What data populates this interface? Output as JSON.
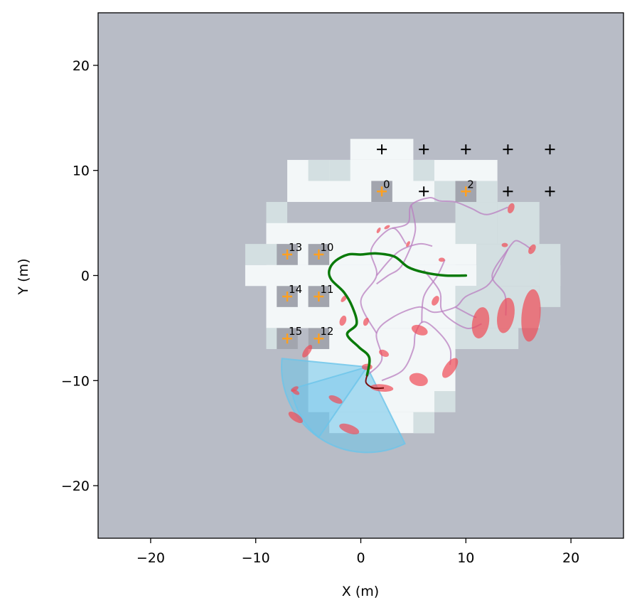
{
  "chart_data": {
    "type": "scatter",
    "xlabel": "X (m)",
    "ylabel": "Y (m)",
    "xlim": [
      -25,
      25
    ],
    "ylim": [
      -25,
      25
    ],
    "xticks": [
      -20,
      -10,
      0,
      10,
      20
    ],
    "yticks": [
      -20,
      -10,
      0,
      10,
      20
    ],
    "xtick_labels": [
      "−20",
      "−10",
      "0",
      "10",
      "20"
    ],
    "ytick_labels": [
      "−20",
      "−10",
      "0",
      "10",
      "20"
    ],
    "grid": false,
    "colors": {
      "background_unknown": "#b8bcc6",
      "free_space": "#f3f7f8",
      "uncertain_space": "#d3dfe1",
      "occupied_cell": "#a2a5ae",
      "trajectory": "#0a7a0a",
      "candidate_paths": "#b97fc0",
      "covariance_ellipse": "#ef4a55",
      "sensor_fov": "#6cc4ea",
      "landmark_estimate": "#ffa020",
      "landmark_grid": "#000000"
    },
    "grid_landmarks": [
      {
        "x": 2,
        "y": 12
      },
      {
        "x": 6,
        "y": 12
      },
      {
        "x": 10,
        "y": 12
      },
      {
        "x": 14,
        "y": 12
      },
      {
        "x": 18,
        "y": 12
      },
      {
        "x": 6,
        "y": 8
      },
      {
        "x": 14,
        "y": 8
      },
      {
        "x": 18,
        "y": 8
      }
    ],
    "observed_landmarks": [
      {
        "id": "0",
        "x": 2,
        "y": 8
      },
      {
        "id": "2",
        "x": 10,
        "y": 8
      },
      {
        "id": "13",
        "x": -7,
        "y": 2
      },
      {
        "id": "10",
        "x": -4,
        "y": 2
      },
      {
        "id": "14",
        "x": -7,
        "y": -2
      },
      {
        "id": "11",
        "x": -4,
        "y": -2
      },
      {
        "id": "15",
        "x": -7,
        "y": -6
      },
      {
        "id": "12",
        "x": -4,
        "y": -6
      }
    ],
    "free_cells": [
      {
        "x": -1,
        "y": 11,
        "w": 6,
        "h": 2
      },
      {
        "x": -7,
        "y": 7,
        "w": 20,
        "h": 4
      },
      {
        "x": -9,
        "y": 1,
        "w": 20,
        "h": 4
      },
      {
        "x": -11,
        "y": -1,
        "w": 24,
        "h": 2
      },
      {
        "x": -9,
        "y": -5,
        "w": 18,
        "h": 6
      },
      {
        "x": -5,
        "y": -9,
        "w": 14,
        "h": 4
      },
      {
        "x": -5,
        "y": -13,
        "w": 14,
        "h": 4
      },
      {
        "x": -3,
        "y": -15,
        "w": 10,
        "h": 2
      }
    ],
    "uncertain_cells": [
      {
        "x": -5,
        "y": 9,
        "w": 2,
        "h": 2
      },
      {
        "x": -3,
        "y": 9,
        "w": 2,
        "h": 2
      },
      {
        "x": 5,
        "y": 9,
        "w": 2,
        "h": 2
      },
      {
        "x": 7,
        "y": 7,
        "w": 6,
        "h": 2
      },
      {
        "x": 9,
        "y": 3,
        "w": 4,
        "h": 4
      },
      {
        "x": 13,
        "y": 3,
        "w": 4,
        "h": 4
      },
      {
        "x": 11,
        "y": -1,
        "w": 8,
        "h": 4
      },
      {
        "x": 9,
        "y": -5,
        "w": 8,
        "h": 4
      },
      {
        "x": 9,
        "y": -7,
        "w": 6,
        "h": 2
      },
      {
        "x": -9,
        "y": 5,
        "w": 2,
        "h": 2
      },
      {
        "x": -11,
        "y": 1,
        "w": 4,
        "h": 2
      },
      {
        "x": -9,
        "y": -7,
        "w": 2,
        "h": 2
      },
      {
        "x": 5,
        "y": -15,
        "w": 2,
        "h": 2
      },
      {
        "x": 7,
        "y": -13,
        "w": 2,
        "h": 2
      },
      {
        "x": 17,
        "y": -3,
        "w": 2,
        "h": 4
      }
    ],
    "trajectory": [
      [
        10,
        0
      ],
      [
        8,
        0
      ],
      [
        6,
        0.3
      ],
      [
        4.5,
        0.8
      ],
      [
        3.2,
        1.8
      ],
      [
        1.5,
        2.1
      ],
      [
        0,
        2
      ],
      [
        -1.2,
        2
      ],
      [
        -2.4,
        1.4
      ],
      [
        -3,
        0.5
      ],
      [
        -2.8,
        -0.4
      ],
      [
        -1.6,
        -1.6
      ],
      [
        -0.8,
        -3
      ],
      [
        -0.4,
        -4.6
      ],
      [
        -1.3,
        -5.6
      ],
      [
        -0.2,
        -6.8
      ],
      [
        0.8,
        -7.8
      ],
      [
        0.6,
        -9.5
      ]
    ],
    "true_path_tail": [
      [
        0.6,
        -9.5
      ],
      [
        0.5,
        -10.2
      ],
      [
        1.2,
        -10.7
      ],
      [
        2.2,
        -10.7
      ]
    ],
    "candidate_paths": [
      [
        [
          0.6,
          -9.5
        ],
        [
          2,
          -8
        ],
        [
          1.5,
          -5.5
        ],
        [
          3,
          -4
        ],
        [
          5.5,
          -3
        ],
        [
          7,
          -3.5
        ],
        [
          9,
          -3
        ],
        [
          10,
          -2
        ],
        [
          12,
          -1
        ],
        [
          13,
          0.5
        ],
        [
          14,
          2.5
        ]
      ],
      [
        [
          2,
          -10
        ],
        [
          4,
          -9
        ],
        [
          5,
          -7
        ],
        [
          5.2,
          -5.5
        ],
        [
          6,
          -4.4
        ],
        [
          7.5,
          -5.5
        ],
        [
          8.5,
          -7
        ],
        [
          8.5,
          -8.5
        ]
      ],
      [
        [
          5.8,
          -4.5
        ],
        [
          6,
          -2
        ],
        [
          7.3,
          0
        ],
        [
          8,
          1.5
        ]
      ],
      [
        [
          1.5,
          -5.5
        ],
        [
          0,
          -2.5
        ],
        [
          1.5,
          0
        ],
        [
          1,
          2.5
        ],
        [
          3,
          4.5
        ],
        [
          4.3,
          3
        ]
      ],
      [
        [
          3,
          4.5
        ],
        [
          4.5,
          5
        ],
        [
          4.8,
          6.7
        ],
        [
          6.5,
          7.4
        ],
        [
          7.5,
          7.1
        ],
        [
          9,
          7
        ],
        [
          10.5,
          6.4
        ],
        [
          12,
          5.8
        ],
        [
          14,
          6.5
        ]
      ],
      [
        [
          4.8,
          6.7
        ],
        [
          5.2,
          4.5
        ],
        [
          4.8,
          2.8
        ]
      ],
      [
        [
          1.5,
          0
        ],
        [
          3.5,
          2.2
        ],
        [
          5.5,
          3
        ],
        [
          6.8,
          2.8
        ]
      ],
      [
        [
          6,
          0.5
        ],
        [
          7.5,
          -1.5
        ],
        [
          7.8,
          -3.5
        ],
        [
          10,
          -5
        ],
        [
          11.5,
          -4.6
        ]
      ],
      [
        [
          14,
          2.5
        ],
        [
          12.5,
          0
        ],
        [
          13.7,
          -1.8
        ],
        [
          13.8,
          -3.8
        ]
      ],
      [
        [
          14,
          2.5
        ],
        [
          14.7,
          3.3
        ],
        [
          15.5,
          3
        ],
        [
          16.2,
          2.5
        ]
      ],
      [
        [
          9,
          -3
        ],
        [
          10.5,
          -3.8
        ],
        [
          11,
          -4
        ]
      ],
      [
        [
          4.8,
          2.8
        ],
        [
          3.8,
          0.8
        ],
        [
          2.6,
          0
        ],
        [
          1.5,
          -0.8
        ]
      ]
    ],
    "ellipses": [
      {
        "x": 14.3,
        "y": 6.4,
        "rx": 0.5,
        "ry": 0.3,
        "angle": 70
      },
      {
        "x": 13.7,
        "y": 2.9,
        "rx": 0.3,
        "ry": 0.2,
        "angle": 0
      },
      {
        "x": 16.3,
        "y": 2.5,
        "rx": 0.5,
        "ry": 0.3,
        "angle": 60
      },
      {
        "x": 7.7,
        "y": 1.5,
        "rx": 0.3,
        "ry": 0.2,
        "angle": 0
      },
      {
        "x": 4.5,
        "y": 3,
        "rx": 0.3,
        "ry": 0.15,
        "angle": 60
      },
      {
        "x": 2.5,
        "y": 4.6,
        "rx": 0.3,
        "ry": 0.15,
        "angle": 30
      },
      {
        "x": 1.7,
        "y": 4.3,
        "rx": 0.3,
        "ry": 0.15,
        "angle": 60
      },
      {
        "x": 11.4,
        "y": -4.5,
        "rx": 1.5,
        "ry": 0.8,
        "angle": 80
      },
      {
        "x": 13.8,
        "y": -3.8,
        "rx": 1.7,
        "ry": 0.8,
        "angle": 80
      },
      {
        "x": 16.2,
        "y": -3.8,
        "rx": 2.5,
        "ry": 0.9,
        "angle": 85
      },
      {
        "x": 7.1,
        "y": -2.4,
        "rx": 0.5,
        "ry": 0.3,
        "angle": 60
      },
      {
        "x": 5.6,
        "y": -5.2,
        "rx": 0.8,
        "ry": 0.45,
        "angle": -20
      },
      {
        "x": 8.5,
        "y": -8.8,
        "rx": 1.1,
        "ry": 0.5,
        "angle": 55
      },
      {
        "x": 5.5,
        "y": -9.9,
        "rx": 0.9,
        "ry": 0.6,
        "angle": -15
      },
      {
        "x": 2.2,
        "y": -7.4,
        "rx": 0.5,
        "ry": 0.3,
        "angle": -25
      },
      {
        "x": 2,
        "y": -10.7,
        "rx": 1.1,
        "ry": 0.35,
        "angle": -5
      },
      {
        "x": -1.7,
        "y": -4.3,
        "rx": 0.5,
        "ry": 0.3,
        "angle": 70
      },
      {
        "x": 0.5,
        "y": -4.4,
        "rx": 0.4,
        "ry": 0.25,
        "angle": 70
      },
      {
        "x": -1.6,
        "y": -2.2,
        "rx": 0.4,
        "ry": 0.2,
        "angle": 50
      },
      {
        "x": -5.1,
        "y": -7.2,
        "rx": 0.7,
        "ry": 0.3,
        "angle": 55
      },
      {
        "x": -6.3,
        "y": -10.8,
        "rx": 0.4,
        "ry": 0.2,
        "angle": 30
      },
      {
        "x": -6.2,
        "y": -11.1,
        "rx": 0.4,
        "ry": 0.2,
        "angle": -30
      },
      {
        "x": -6.2,
        "y": -13.5,
        "rx": 0.8,
        "ry": 0.35,
        "angle": -35
      },
      {
        "x": -2.4,
        "y": -11.8,
        "rx": 0.7,
        "ry": 0.3,
        "angle": -25
      },
      {
        "x": -1.1,
        "y": -14.6,
        "rx": 1,
        "ry": 0.4,
        "angle": -20
      },
      {
        "x": 0.6,
        "y": -8.7,
        "rx": 0.5,
        "ry": 0.3,
        "angle": 0
      }
    ],
    "sensor_fov": [
      {
        "origin": [
          0.6,
          -8.7
        ],
        "from": [
          -7.5,
          -7.9
        ],
        "to": [
          4.2,
          -16
        ]
      },
      {
        "origin": [
          0.6,
          -8.7
        ],
        "from": [
          -6.6,
          -10.8
        ],
        "to": [
          -4,
          -15.4
        ]
      }
    ]
  }
}
